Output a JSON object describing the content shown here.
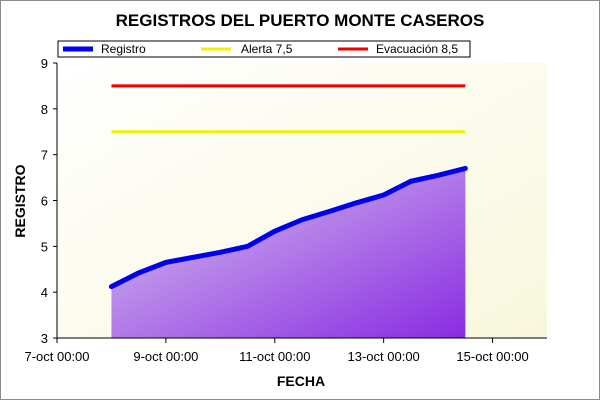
{
  "chart_data": {
    "type": "area",
    "title": "REGISTROS DEL PUERTO MONTE CASEROS",
    "xlabel": "FECHA",
    "ylabel": "REGISTRO",
    "ylim": [
      3,
      9
    ],
    "yticks": [
      "3",
      "4",
      "5",
      "6",
      "7",
      "8",
      "9"
    ],
    "xlim": [
      "2014-10-07T00:00",
      "2014-10-16T00:00"
    ],
    "xticks": [
      {
        "date": "2014-10-07T00:00",
        "label": "7-oct 00:00"
      },
      {
        "date": "2014-10-09T00:00",
        "label": "9-oct 00:00"
      },
      {
        "date": "2014-10-11T00:00",
        "label": "11-oct 00:00"
      },
      {
        "date": "2014-10-13T00:00",
        "label": "13-oct 00:00"
      },
      {
        "date": "2014-10-15T00:00",
        "label": "15-oct 00:00"
      }
    ],
    "grid": false,
    "legend_position": "top",
    "series": [
      {
        "name": "Registro",
        "kind": "area",
        "color": "#0000ee",
        "fill_from": "#d8c8ee",
        "fill_to": "#8a2be2",
        "points": [
          {
            "x": "2014-10-08T00:00",
            "y": 4.12
          },
          {
            "x": "2014-10-08T12:00",
            "y": 4.42
          },
          {
            "x": "2014-10-09T00:00",
            "y": 4.65
          },
          {
            "x": "2014-10-09T12:00",
            "y": 4.76
          },
          {
            "x": "2014-10-10T00:00",
            "y": 4.87
          },
          {
            "x": "2014-10-10T12:00",
            "y": 5.0
          },
          {
            "x": "2014-10-11T00:00",
            "y": 5.33
          },
          {
            "x": "2014-10-11T12:00",
            "y": 5.58
          },
          {
            "x": "2014-10-12T00:00",
            "y": 5.76
          },
          {
            "x": "2014-10-12T12:00",
            "y": 5.95
          },
          {
            "x": "2014-10-13T00:00",
            "y": 6.12
          },
          {
            "x": "2014-10-13T12:00",
            "y": 6.42
          },
          {
            "x": "2014-10-14T00:00",
            "y": 6.55
          },
          {
            "x": "2014-10-14T12:00",
            "y": 6.7
          }
        ]
      },
      {
        "name": "Alerta 7,5",
        "kind": "line",
        "color": "#f0f000",
        "points": [
          {
            "x": "2014-10-08T00:00",
            "y": 7.5
          },
          {
            "x": "2014-10-14T12:00",
            "y": 7.5
          }
        ]
      },
      {
        "name": "Evacuación 8,5",
        "kind": "line",
        "color": "#ee0000",
        "points": [
          {
            "x": "2014-10-08T00:00",
            "y": 8.5
          },
          {
            "x": "2014-10-14T12:00",
            "y": 8.5
          }
        ]
      }
    ]
  }
}
